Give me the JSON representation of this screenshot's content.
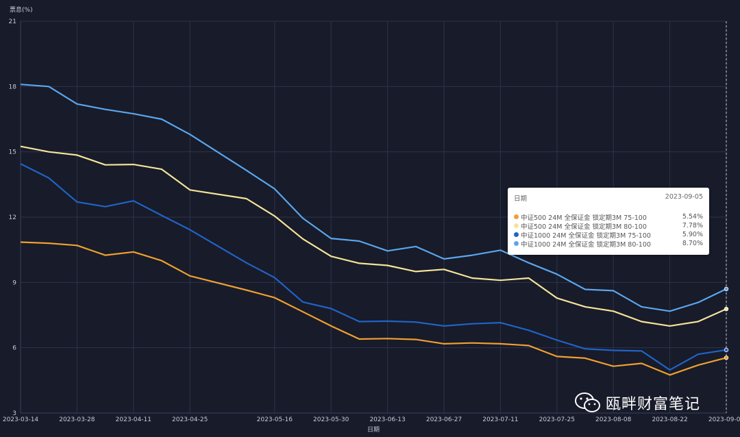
{
  "chart_data": {
    "type": "line",
    "ylabel": "票息(%)",
    "xlabel": "日期",
    "ylim": [
      3,
      21
    ],
    "yticks": [
      3,
      6,
      9,
      12,
      15,
      18,
      21
    ],
    "grid": true,
    "x": [
      "2023-03-14",
      "2023-03-21",
      "2023-03-28",
      "2023-04-04",
      "2023-04-11",
      "2023-04-18",
      "2023-04-25",
      "2023-05-09",
      "2023-05-16",
      "2023-05-23",
      "2023-05-30",
      "2023-06-06",
      "2023-06-13",
      "2023-06-20",
      "2023-06-27",
      "2023-07-04",
      "2023-07-11",
      "2023-07-18",
      "2023-07-25",
      "2023-08-01",
      "2023-08-08",
      "2023-08-15",
      "2023-08-22",
      "2023-08-29",
      "2023-09-05"
    ],
    "xtick_labels": [
      "2023-03-14",
      "2023-03-28",
      "2023-04-11",
      "2023-04-25",
      "2023-05-16",
      "2023-05-30",
      "2023-06-13",
      "2023-06-27",
      "2023-07-11",
      "2023-07-25",
      "2023-08-08",
      "2023-08-22",
      "2023-09-05"
    ],
    "series": [
      {
        "name": "中证500 24M 全保证金 锁定期3M 75-100",
        "color": "#f0a030",
        "values": [
          10.85,
          10.8,
          10.7,
          10.25,
          10.4,
          10.0,
          9.3,
          8.65,
          8.3,
          7.65,
          7.0,
          6.4,
          6.42,
          6.38,
          6.18,
          6.22,
          6.18,
          6.1,
          5.6,
          5.52,
          5.15,
          5.28,
          4.75,
          5.2,
          5.54
        ]
      },
      {
        "name": "中证500 24M 全保证金 锁定期3M 80-100",
        "color": "#f4e49a",
        "values": [
          15.25,
          15.0,
          14.85,
          14.4,
          14.42,
          14.2,
          13.25,
          12.85,
          12.05,
          11.0,
          10.2,
          9.88,
          9.78,
          9.5,
          9.6,
          9.2,
          9.1,
          9.2,
          8.28,
          7.88,
          7.68,
          7.2,
          7.0,
          7.2,
          7.78
        ]
      },
      {
        "name": "中证1000 24M 全保证金 锁定期3M 75-100",
        "color": "#1f64c8",
        "values": [
          14.45,
          13.8,
          12.7,
          12.48,
          12.75,
          12.08,
          11.42,
          9.9,
          9.22,
          8.1,
          7.8,
          7.2,
          7.22,
          7.18,
          7.0,
          7.1,
          7.15,
          6.8,
          6.35,
          5.95,
          5.88,
          5.85,
          4.98,
          5.7,
          5.9
        ]
      },
      {
        "name": "中证1000 24M 全保证金 锁定期3M 80-100",
        "color": "#5aa6ee",
        "values": [
          18.1,
          18.0,
          17.2,
          16.95,
          16.75,
          16.5,
          15.8,
          14.15,
          13.3,
          11.95,
          11.02,
          10.9,
          10.45,
          10.65,
          10.08,
          10.25,
          10.48,
          9.9,
          9.38,
          8.68,
          8.62,
          7.88,
          7.68,
          8.08,
          8.7
        ]
      }
    ],
    "tooltip": {
      "title": "日期",
      "date": "2023-09-05",
      "values": [
        "5.54%",
        "7.78%",
        "5.90%",
        "8.70%"
      ]
    }
  },
  "watermark": {
    "text": "瓯畔财富笔记",
    "icon": "wechat-icon"
  }
}
